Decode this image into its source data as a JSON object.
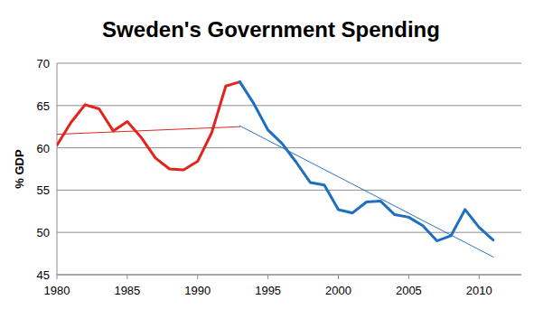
{
  "chart_data": {
    "type": "line",
    "title": "Sweden's Government Spending",
    "y_label": "% GDP",
    "xlim": [
      1980,
      2013
    ],
    "xticks": [
      1980,
      1985,
      1990,
      1995,
      2000,
      2005,
      2010
    ],
    "ylim": [
      45,
      70
    ],
    "yticks": [
      45,
      50,
      55,
      60,
      65,
      70
    ],
    "grid": true,
    "series": [
      {
        "type": "line",
        "color": "#e3231e",
        "x": [
          1980,
          1981,
          1982,
          1983,
          1984,
          1985,
          1986,
          1987,
          1988,
          1989,
          1990,
          1991,
          1992,
          1993
        ],
        "values": [
          60.3,
          63.0,
          65.1,
          64.6,
          62.0,
          63.1,
          61.2,
          58.8,
          57.5,
          57.4,
          58.4,
          61.8,
          67.3,
          67.8
        ]
      },
      {
        "type": "line",
        "color": "#1f6fc0",
        "x": [
          1993,
          1994,
          1995,
          1996,
          1997,
          1998,
          1999,
          2000,
          2001,
          2002,
          2003,
          2004,
          2005,
          2006,
          2007,
          2008,
          2009,
          2010,
          2011
        ],
        "values": [
          67.8,
          65.2,
          62.1,
          60.5,
          58.3,
          55.9,
          55.6,
          52.7,
          52.3,
          53.6,
          53.7,
          52.1,
          51.8,
          50.8,
          49.0,
          49.6,
          52.7,
          50.6,
          49.1
        ]
      },
      {
        "type": "trend",
        "color": "#e3231e",
        "x": [
          1980,
          1993
        ],
        "values": [
          61.6,
          62.5
        ]
      },
      {
        "type": "trend",
        "color": "#2b73c2",
        "x": [
          1993,
          2011
        ],
        "values": [
          62.6,
          47.1
        ]
      }
    ]
  }
}
